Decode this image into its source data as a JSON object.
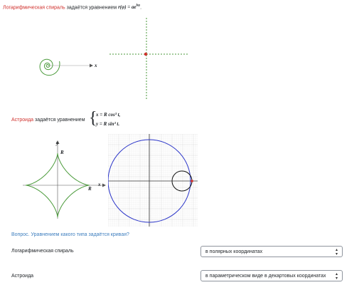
{
  "spiral": {
    "term": "Логарифмическая спираль",
    "text": " задаётся уравнением ",
    "formula": "r(φ) = ae",
    "formula_sup": "kφ",
    "end": ".",
    "axis_label": "x"
  },
  "astroid": {
    "term": "Астроида",
    "text": " задаётся уравнением",
    "line1": "x = R cos³ t,",
    "line2": "y = R sin³ t.",
    "labels": {
      "y": "y",
      "x": "x",
      "r_top": "R",
      "r_right": "R"
    }
  },
  "question": "Вопрос. Уравнением какого типа задаётся кривая?",
  "rows": [
    {
      "label": "Логарифмическая спираль",
      "selected": "в полярных координатах"
    },
    {
      "label": "Астроида",
      "selected": "в параметрическом виде в декартовых координатах"
    }
  ],
  "colors": {
    "accent_red": "#d0312d",
    "link_blue": "#3f7fbf",
    "curve_green": "#4a9a3a",
    "circle_blue": "#2b35c9"
  },
  "icons": {
    "select_arrows": "up-down-arrows-icon"
  }
}
